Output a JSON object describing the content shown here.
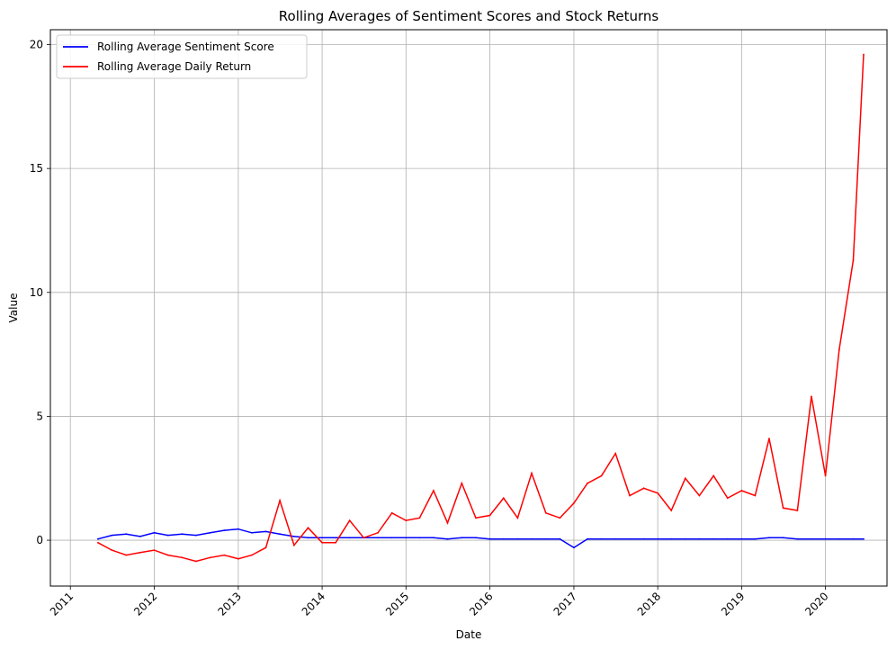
{
  "chart_data": {
    "type": "line",
    "title": "Rolling Averages of Sentiment Scores and Stock Returns",
    "xlabel": "Date",
    "ylabel": "Value",
    "xlim": [
      "2010-10-06",
      "2020-09-25"
    ],
    "ylim": [
      -1.85,
      20.6
    ],
    "x_ticks": [
      "2011",
      "2012",
      "2013",
      "2014",
      "2015",
      "2016",
      "2017",
      "2018",
      "2019",
      "2020"
    ],
    "y_ticks": [
      0,
      5,
      10,
      15,
      20
    ],
    "grid": true,
    "legend_position": "top-left",
    "series": [
      {
        "name": "Rolling Average Sentiment Score",
        "color": "#0000ff",
        "x": [
          "2011-05-01",
          "2011-07-01",
          "2011-09-01",
          "2011-11-01",
          "2012-01-01",
          "2012-03-01",
          "2012-05-01",
          "2012-07-01",
          "2012-09-01",
          "2012-11-01",
          "2013-01-01",
          "2013-03-01",
          "2013-05-01",
          "2013-07-01",
          "2013-09-01",
          "2013-11-01",
          "2014-01-01",
          "2014-03-01",
          "2014-05-01",
          "2014-07-01",
          "2014-09-01",
          "2014-11-01",
          "2015-01-01",
          "2015-03-01",
          "2015-05-01",
          "2015-07-01",
          "2015-09-01",
          "2015-11-01",
          "2016-01-01",
          "2016-03-01",
          "2016-05-01",
          "2016-07-01",
          "2016-09-01",
          "2016-11-01",
          "2017-01-01",
          "2017-03-01",
          "2017-05-01",
          "2017-07-01",
          "2017-09-01",
          "2017-11-01",
          "2018-01-01",
          "2018-03-01",
          "2018-05-01",
          "2018-07-01",
          "2018-09-01",
          "2018-11-01",
          "2019-01-01",
          "2019-03-01",
          "2019-05-01",
          "2019-07-01",
          "2019-09-01",
          "2019-11-01",
          "2020-01-01",
          "2020-03-01",
          "2020-05-01",
          "2020-06-15"
        ],
        "y": [
          0.05,
          0.2,
          0.25,
          0.15,
          0.3,
          0.2,
          0.25,
          0.2,
          0.3,
          0.4,
          0.45,
          0.3,
          0.35,
          0.25,
          0.15,
          0.1,
          0.1,
          0.1,
          0.1,
          0.1,
          0.1,
          0.1,
          0.1,
          0.1,
          0.1,
          0.05,
          0.1,
          0.1,
          0.05,
          0.05,
          0.05,
          0.05,
          0.05,
          0.05,
          -0.3,
          0.05,
          0.05,
          0.05,
          0.05,
          0.05,
          0.05,
          0.05,
          0.05,
          0.05,
          0.05,
          0.05,
          0.05,
          0.05,
          0.1,
          0.1,
          0.05,
          0.05,
          0.05,
          0.05,
          0.05,
          0.05
        ]
      },
      {
        "name": "Rolling Average Daily Return",
        "color": "#ff0000",
        "x": [
          "2011-05-01",
          "2011-07-01",
          "2011-09-01",
          "2011-11-01",
          "2012-01-01",
          "2012-03-01",
          "2012-05-01",
          "2012-07-01",
          "2012-09-01",
          "2012-11-01",
          "2013-01-01",
          "2013-03-01",
          "2013-05-01",
          "2013-07-01",
          "2013-09-01",
          "2013-11-01",
          "2014-01-01",
          "2014-03-01",
          "2014-05-01",
          "2014-07-01",
          "2014-09-01",
          "2014-11-01",
          "2015-01-01",
          "2015-03-01",
          "2015-05-01",
          "2015-07-01",
          "2015-09-01",
          "2015-11-01",
          "2016-01-01",
          "2016-03-01",
          "2016-05-01",
          "2016-07-01",
          "2016-09-01",
          "2016-11-01",
          "2017-01-01",
          "2017-03-01",
          "2017-05-01",
          "2017-07-01",
          "2017-09-01",
          "2017-11-01",
          "2018-01-01",
          "2018-03-01",
          "2018-05-01",
          "2018-07-01",
          "2018-09-01",
          "2018-11-01",
          "2019-01-01",
          "2019-03-01",
          "2019-05-01",
          "2019-07-01",
          "2019-09-01",
          "2019-11-01",
          "2020-01-01",
          "2020-03-01",
          "2020-05-01",
          "2020-06-15"
        ],
        "y": [
          -0.1,
          -0.4,
          -0.6,
          -0.5,
          -0.4,
          -0.6,
          -0.7,
          -0.85,
          -0.7,
          -0.6,
          -0.75,
          -0.6,
          -0.3,
          1.6,
          -0.2,
          0.5,
          -0.1,
          -0.1,
          0.8,
          0.1,
          0.3,
          1.1,
          0.8,
          0.9,
          2.0,
          0.7,
          2.3,
          0.9,
          1.0,
          1.7,
          0.9,
          2.7,
          1.1,
          0.9,
          1.5,
          2.3,
          2.6,
          3.5,
          1.8,
          2.1,
          1.9,
          1.2,
          2.5,
          1.8,
          2.6,
          1.7,
          2.0,
          1.8,
          4.1,
          1.3,
          1.2,
          5.8,
          2.6,
          7.7,
          11.3,
          19.6
        ]
      }
    ]
  }
}
